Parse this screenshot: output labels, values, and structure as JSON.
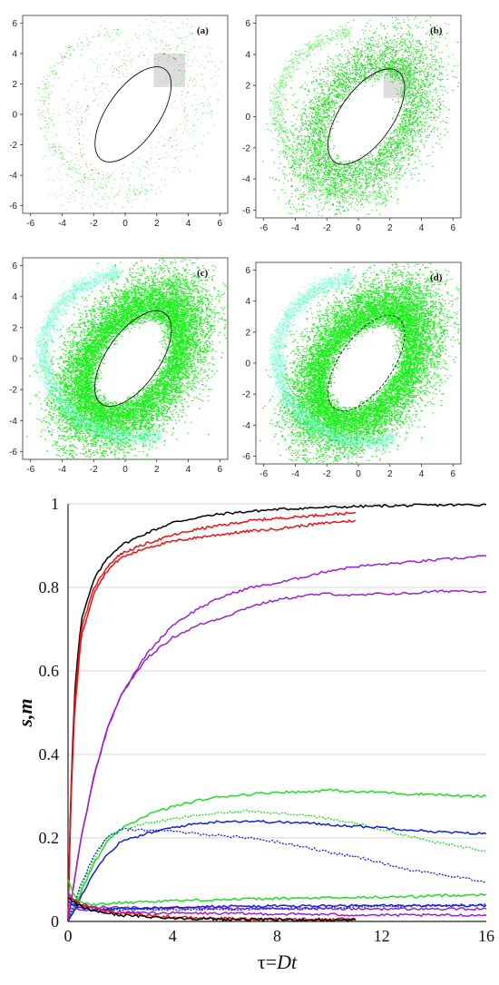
{
  "chart_data": [
    {
      "type": "scatter",
      "panel": "(a)",
      "xlim": [
        -6.5,
        6.5
      ],
      "ylim": [
        -6.5,
        6.5
      ],
      "x_ticks": [
        "-6",
        "-4",
        "-2",
        "0",
        "2",
        "4",
        "6"
      ],
      "y_ticks": [
        "6",
        "4",
        "2",
        "0",
        "-2",
        "-4",
        "-6"
      ],
      "density": "sparse",
      "ellipse": {
        "cx": 0.5,
        "cy": 0.0,
        "rx": 3.5,
        "ry": 1.7,
        "angle_deg": 55,
        "style": "solid"
      },
      "shaded_box": {
        "x": [
          1.8,
          3.8
        ],
        "y": [
          1.8,
          4.0
        ]
      },
      "point_colors": [
        "#22cc22",
        "#44dd44",
        "#aa3333"
      ]
    },
    {
      "type": "scatter",
      "panel": "(b)",
      "xlim": [
        -6.5,
        6.5
      ],
      "ylim": [
        -6.5,
        6.5
      ],
      "x_ticks": [
        "-6",
        "-4",
        "-2",
        "0",
        "2",
        "4",
        "6"
      ],
      "y_ticks": [
        "6",
        "4",
        "2",
        "0",
        "-2",
        "-4",
        "-6"
      ],
      "density": "medium",
      "ellipse": {
        "cx": 0.5,
        "cy": 0.0,
        "rx": 3.5,
        "ry": 1.7,
        "angle_deg": 55,
        "style": "solid"
      },
      "shaded_box": {
        "x": [
          1.6,
          3.4
        ],
        "y": [
          1.2,
          3.2
        ]
      },
      "point_colors": [
        "#22dd22",
        "#44ee44"
      ]
    },
    {
      "type": "scatter",
      "panel": "(c)",
      "xlim": [
        -6.5,
        6.5
      ],
      "ylim": [
        -6.5,
        6.5
      ],
      "x_ticks": [
        "-6",
        "-4",
        "-2",
        "0",
        "2",
        "4",
        "6"
      ],
      "y_ticks": [
        "6",
        "4",
        "2",
        "0",
        "-2",
        "-4",
        "-6"
      ],
      "density": "dense",
      "ellipse": {
        "cx": 0.5,
        "cy": 0.0,
        "rx": 3.5,
        "ry": 1.7,
        "angle_deg": 55,
        "style": "solid"
      },
      "point_colors": [
        "#11ee11",
        "#66ffcc"
      ]
    },
    {
      "type": "scatter",
      "panel": "(d)",
      "xlim": [
        -6.5,
        6.5
      ],
      "ylim": [
        -6.5,
        6.5
      ],
      "x_ticks": [
        "-6",
        "-4",
        "-2",
        "0",
        "2",
        "4",
        "6"
      ],
      "y_ticks": [
        "6",
        "4",
        "2",
        "0",
        "-2",
        "-4",
        "-6"
      ],
      "density": "dense",
      "ellipse": {
        "cx": 0.5,
        "cy": 0.0,
        "rx": 3.5,
        "ry": 1.7,
        "angle_deg": 55,
        "style": "dashed"
      },
      "point_colors": [
        "#11ee11",
        "#66ffcc"
      ]
    },
    {
      "type": "line",
      "xlabel_main": "τ=",
      "xlabel_italic": "Dt",
      "ylabel": "s,m",
      "xlim": [
        0,
        16
      ],
      "ylim": [
        0,
        1
      ],
      "x_ticks": [
        0,
        4,
        8,
        12,
        16
      ],
      "y_ticks": [
        0,
        0.2,
        0.4,
        0.6,
        0.8,
        1
      ],
      "y_tick_labels": [
        "0",
        "0.2",
        "0.4",
        "0.6",
        "0.8",
        "1"
      ],
      "grid": "horizontal",
      "series": [
        {
          "color": "#000000",
          "x": [
            0,
            0.1,
            0.25,
            0.5,
            1,
            1.5,
            2,
            3,
            4,
            5,
            6,
            8,
            10,
            12,
            14,
            16
          ],
          "y": [
            0,
            0.3,
            0.55,
            0.72,
            0.82,
            0.87,
            0.9,
            0.93,
            0.955,
            0.968,
            0.977,
            0.987,
            0.992,
            0.995,
            0.997,
            0.998
          ]
        },
        {
          "color": "#ee1111",
          "x": [
            0,
            0.1,
            0.25,
            0.5,
            1,
            1.5,
            2,
            3,
            4,
            5,
            6,
            7,
            8,
            9,
            10,
            11
          ],
          "y": [
            0,
            0.28,
            0.52,
            0.7,
            0.8,
            0.85,
            0.88,
            0.905,
            0.925,
            0.94,
            0.95,
            0.96,
            0.965,
            0.97,
            0.975,
            0.978
          ]
        },
        {
          "color": "#ee1111",
          "x": [
            0,
            0.1,
            0.25,
            0.5,
            1,
            1.5,
            2,
            3,
            4,
            5,
            6,
            7,
            8,
            9,
            10,
            11
          ],
          "y": [
            0,
            0.27,
            0.5,
            0.68,
            0.79,
            0.84,
            0.87,
            0.895,
            0.91,
            0.92,
            0.928,
            0.935,
            0.94,
            0.948,
            0.955,
            0.96
          ]
        },
        {
          "color": "#9922cc",
          "x": [
            0,
            0.5,
            1,
            1.5,
            2,
            3,
            4,
            5,
            6,
            7,
            8,
            9,
            10,
            11,
            12,
            13,
            14,
            15,
            16
          ],
          "y": [
            0,
            0.2,
            0.35,
            0.46,
            0.54,
            0.64,
            0.71,
            0.75,
            0.78,
            0.8,
            0.81,
            0.825,
            0.84,
            0.85,
            0.855,
            0.86,
            0.865,
            0.87,
            0.875
          ]
        },
        {
          "color": "#9922cc",
          "x": [
            0,
            0.5,
            1,
            1.5,
            2,
            3,
            4,
            5,
            6,
            7,
            8,
            9,
            10,
            11,
            12,
            13,
            14,
            15,
            16
          ],
          "y": [
            0,
            0.2,
            0.35,
            0.46,
            0.54,
            0.63,
            0.68,
            0.71,
            0.73,
            0.755,
            0.77,
            0.78,
            0.785,
            0.78,
            0.785,
            0.785,
            0.79,
            0.792,
            0.79
          ]
        },
        {
          "color": "#22dd22",
          "x": [
            0,
            0.5,
            1,
            1.5,
            2,
            3,
            4,
            5,
            6,
            7,
            8,
            9,
            10,
            11,
            12,
            13,
            14,
            15,
            16
          ],
          "y": [
            0,
            0.07,
            0.14,
            0.19,
            0.22,
            0.255,
            0.275,
            0.29,
            0.3,
            0.305,
            0.31,
            0.31,
            0.315,
            0.31,
            0.31,
            0.305,
            0.305,
            0.3,
            0.3
          ]
        },
        {
          "color": "#22dd22",
          "dashed": true,
          "x": [
            0,
            0.5,
            1,
            1.5,
            2,
            3,
            4,
            5,
            6,
            7,
            8,
            9,
            10,
            11,
            12,
            13,
            14,
            15,
            16
          ],
          "y": [
            0,
            0.08,
            0.15,
            0.2,
            0.22,
            0.235,
            0.245,
            0.255,
            0.26,
            0.265,
            0.26,
            0.255,
            0.245,
            0.235,
            0.22,
            0.205,
            0.19,
            0.18,
            0.17
          ]
        },
        {
          "color": "#1122dd",
          "x": [
            0,
            0.5,
            1,
            1.5,
            2,
            3,
            4,
            5,
            6,
            7,
            8,
            9,
            10,
            11,
            12,
            13,
            14,
            15,
            16
          ],
          "y": [
            0,
            0.06,
            0.12,
            0.16,
            0.19,
            0.21,
            0.225,
            0.235,
            0.24,
            0.24,
            0.238,
            0.236,
            0.232,
            0.228,
            0.225,
            0.22,
            0.215,
            0.212,
            0.21
          ]
        },
        {
          "color": "#1122dd",
          "dashed": true,
          "x": [
            0,
            0.5,
            1,
            1.5,
            2,
            3,
            4,
            5,
            6,
            7,
            8,
            9,
            10,
            11,
            12,
            13,
            14,
            15,
            16
          ],
          "y": [
            0,
            0.09,
            0.16,
            0.2,
            0.22,
            0.22,
            0.215,
            0.21,
            0.205,
            0.2,
            0.19,
            0.18,
            0.165,
            0.155,
            0.14,
            0.125,
            0.115,
            0.105,
            0.095
          ]
        },
        {
          "color": "#22dd22",
          "x": [
            0,
            0.25,
            0.5,
            1,
            2,
            4,
            8,
            12,
            16
          ],
          "y": [
            0.1,
            0.06,
            0.045,
            0.04,
            0.045,
            0.05,
            0.055,
            0.058,
            0.065
          ]
        },
        {
          "color": "#9922cc",
          "x": [
            0,
            0.25,
            0.5,
            1,
            2,
            4,
            8,
            12,
            16
          ],
          "y": [
            0.07,
            0.05,
            0.04,
            0.035,
            0.033,
            0.032,
            0.031,
            0.03,
            0.03
          ]
        },
        {
          "color": "#1122dd",
          "x": [
            0,
            0.5,
            1,
            2,
            4,
            8,
            12,
            16
          ],
          "y": [
            0.05,
            0.03,
            0.028,
            0.03,
            0.035,
            0.037,
            0.038,
            0.038
          ]
        },
        {
          "color": "#1122dd",
          "dashed": true,
          "x": [
            0,
            1,
            2,
            4,
            8,
            12,
            16
          ],
          "y": [
            0.04,
            0.03,
            0.028,
            0.028,
            0.03,
            0.035,
            0.04
          ]
        },
        {
          "color": "#9922cc",
          "x": [
            0,
            1,
            2,
            4,
            8,
            12,
            16
          ],
          "y": [
            0.03,
            0.025,
            0.022,
            0.02,
            0.018,
            0.015,
            0.015
          ]
        },
        {
          "color": "#ee1111",
          "x": [
            0,
            0.25,
            0.5,
            1,
            2,
            4,
            6,
            8,
            11
          ],
          "y": [
            0.06,
            0.05,
            0.04,
            0.032,
            0.02,
            0.01,
            0.007,
            0.006,
            0.005
          ]
        },
        {
          "color": "#000000",
          "x": [
            0,
            0.25,
            0.5,
            1,
            2,
            4,
            6,
            8,
            11
          ],
          "y": [
            0.055,
            0.045,
            0.035,
            0.025,
            0.015,
            0.008,
            0.005,
            0.004,
            0.003
          ]
        }
      ]
    }
  ]
}
